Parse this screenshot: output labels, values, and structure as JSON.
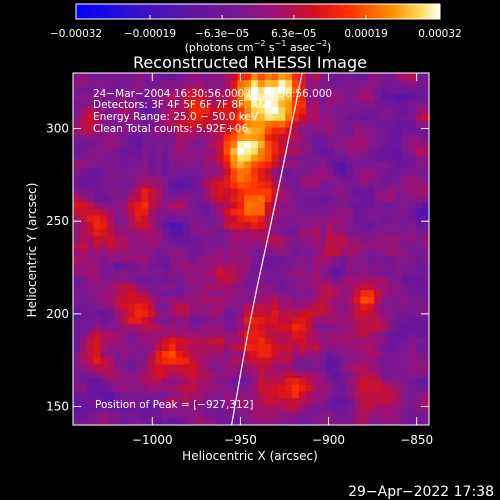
{
  "chart_data": {
    "type": "heatmap",
    "title": "Reconstructed RHESSI Image",
    "xlabel": "Heliocentric X (arcsec)",
    "ylabel": "Heliocentric Y (arcsec)",
    "xlim": [
      -1045,
      -843
    ],
    "ylim": [
      140,
      330
    ],
    "xticks": [
      -1000,
      -950,
      -900,
      -850
    ],
    "xtick_labels": [
      "−1000",
      "−950",
      "−900",
      "−850"
    ],
    "yticks": [
      150,
      200,
      250,
      300
    ],
    "ytick_labels": [
      "150",
      "200",
      "250",
      "300"
    ],
    "colorbar": {
      "min": -0.00032,
      "max": 0.00032,
      "tick_values": [
        -0.00032,
        -0.00019,
        -6.3e-05,
        6.3e-05,
        0.00019,
        0.00032
      ],
      "tick_labels": [
        "−0.00032",
        "−0.00019",
        "−6.3e−05",
        "6.3e−05",
        "0.00019",
        "0.00032"
      ],
      "unit_main": "(photons cm",
      "unit_sup1": "−2",
      "unit_mid": " s",
      "unit_sup2": "−1",
      "unit_end": " asec",
      "unit_sup3": "−2",
      "unit_close": ")"
    },
    "sources": [
      {
        "x": -935,
        "y": 318,
        "amp": 0.00036,
        "sx": 14,
        "sy": 16
      },
      {
        "x": -948,
        "y": 285,
        "amp": 0.00026,
        "sx": 12,
        "sy": 14
      },
      {
        "x": -945,
        "y": 255,
        "amp": 0.00018,
        "sx": 10,
        "sy": 12
      },
      {
        "x": -1005,
        "y": 260,
        "amp": 0.00018,
        "sx": 8,
        "sy": 9
      },
      {
        "x": -1030,
        "y": 245,
        "amp": 0.00016,
        "sx": 9,
        "sy": 12
      },
      {
        "x": -1010,
        "y": 205,
        "amp": 0.00015,
        "sx": 12,
        "sy": 10
      },
      {
        "x": -985,
        "y": 175,
        "amp": 0.00014,
        "sx": 14,
        "sy": 12
      },
      {
        "x": -940,
        "y": 190,
        "amp": 0.00016,
        "sx": 10,
        "sy": 14
      },
      {
        "x": -915,
        "y": 195,
        "amp": 0.00013,
        "sx": 12,
        "sy": 10
      },
      {
        "x": -880,
        "y": 205,
        "amp": 0.00014,
        "sx": 10,
        "sy": 14
      },
      {
        "x": -925,
        "y": 160,
        "amp": 0.00015,
        "sx": 12,
        "sy": 10
      },
      {
        "x": -960,
        "y": 225,
        "amp": 0.00012,
        "sx": 8,
        "sy": 8
      },
      {
        "x": -900,
        "y": 240,
        "amp": 0.00011,
        "sx": 9,
        "sy": 9
      },
      {
        "x": -1030,
        "y": 175,
        "amp": 0.00012,
        "sx": 8,
        "sy": 10
      },
      {
        "x": -872,
        "y": 160,
        "amp": 0.00011,
        "sx": 10,
        "sy": 9
      },
      {
        "x": -975,
        "y": 310,
        "amp": 0.00011,
        "sx": 9,
        "sy": 8
      },
      {
        "x": -1035,
        "y": 300,
        "amp": 0.0001,
        "sx": 8,
        "sy": 8
      }
    ],
    "limb_curve": [
      [
        -955,
        140
      ],
      [
        -944,
        200
      ],
      [
        -930,
        260
      ],
      [
        -915,
        330
      ]
    ],
    "annotations": {
      "time_range": "24−Mar−2004 16:30:56.000 to 16:56:56.000",
      "detectors": "Detectors: 3F 4F 5F 6F 7F 8F, A&P",
      "energy": "Energy Range: 25.0 − 50.0 keV",
      "clean": "Clean    Total counts: 5.92E+06",
      "peak": "Position of Peak = [−927,312]"
    }
  },
  "footer": {
    "timestamp": "29−Apr−2022 17:38"
  }
}
